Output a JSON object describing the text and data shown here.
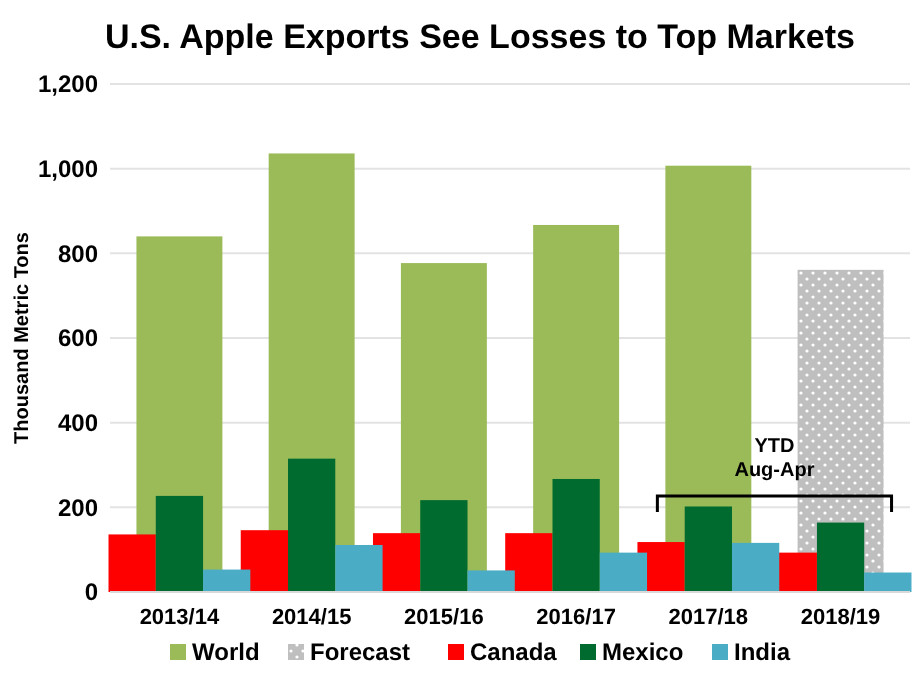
{
  "chart_data": {
    "type": "bar",
    "title": "U.S. Apple Exports See Losses to Top Markets",
    "ylabel": "Thousand Metric Tons",
    "categories": [
      "2013/14",
      "2014/15",
      "2015/16",
      "2016/17",
      "2017/18",
      "2018/19"
    ],
    "series": [
      {
        "name": "World",
        "color": "#9bbb59",
        "values": [
          840,
          1036,
          777,
          867,
          1007,
          null
        ]
      },
      {
        "name": "Forecast",
        "color": "#bfbfbf",
        "values": [
          null,
          null,
          null,
          null,
          null,
          761
        ]
      },
      {
        "name": "Canada",
        "color": "#ff0000",
        "values": [
          136,
          146,
          139,
          139,
          118,
          93
        ]
      },
      {
        "name": "Mexico",
        "color": "#006b2f",
        "values": [
          227,
          315,
          217,
          267,
          202,
          164
        ]
      },
      {
        "name": "India",
        "color": "#4bacc6",
        "values": [
          53,
          111,
          51,
          93,
          116,
          46
        ]
      }
    ],
    "ylim": [
      0,
      1200
    ],
    "yticks": [
      {
        "value": 0,
        "label": "0"
      },
      {
        "value": 200,
        "label": "200"
      },
      {
        "value": 400,
        "label": "400"
      },
      {
        "value": 600,
        "label": "600"
      },
      {
        "value": 800,
        "label": "800"
      },
      {
        "value": 1000,
        "label": "1,000"
      },
      {
        "value": 1200,
        "label": "1,200"
      }
    ],
    "grid": "y",
    "legend": "bottom",
    "annotations": [
      "YTD\nAug-Apr"
    ]
  }
}
